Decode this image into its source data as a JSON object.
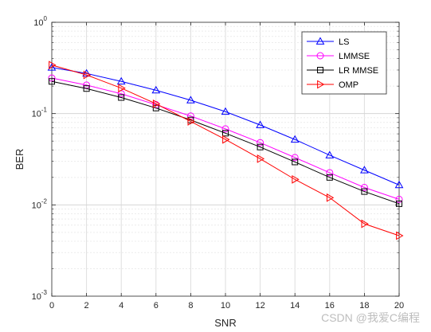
{
  "chart_data": {
    "type": "line",
    "title": "",
    "xlabel": "SNR",
    "ylabel": "BER",
    "xlim": [
      0,
      20
    ],
    "ylim": [
      0.001,
      1
    ],
    "yscale": "log",
    "grid": true,
    "minor_grid": true,
    "legend_position": "top-right",
    "x_ticks": [
      0,
      2,
      4,
      6,
      8,
      10,
      12,
      14,
      16,
      18,
      20
    ],
    "y_ticks": [
      {
        "value": 1,
        "base": "10",
        "exp": "0"
      },
      {
        "value": 0.1,
        "base": "10",
        "exp": "-1"
      },
      {
        "value": 0.01,
        "base": "10",
        "exp": "-2"
      },
      {
        "value": 0.001,
        "base": "10",
        "exp": "-3"
      }
    ],
    "x": [
      0,
      2,
      4,
      6,
      8,
      10,
      12,
      14,
      16,
      18,
      20
    ],
    "series": [
      {
        "name": "LS",
        "color": "#0000ff",
        "marker": "triangle-up",
        "values": [
          0.32,
          0.275,
          0.225,
          0.18,
          0.14,
          0.105,
          0.075,
          0.052,
          0.035,
          0.024,
          0.0165
        ]
      },
      {
        "name": "LMMSE",
        "color": "#ff00ff",
        "marker": "circle",
        "values": [
          0.245,
          0.205,
          0.165,
          0.125,
          0.094,
          0.068,
          0.048,
          0.033,
          0.0225,
          0.0155,
          0.0115
        ]
      },
      {
        "name": "LR MMSE",
        "color": "#000000",
        "marker": "square",
        "values": [
          0.225,
          0.188,
          0.15,
          0.115,
          0.085,
          0.061,
          0.043,
          0.0295,
          0.02,
          0.014,
          0.0103
        ]
      },
      {
        "name": "OMP",
        "color": "#ff0000",
        "marker": "triangle-right",
        "values": [
          0.34,
          0.265,
          0.19,
          0.128,
          0.082,
          0.052,
          0.032,
          0.019,
          0.012,
          0.0062,
          0.0046
        ]
      }
    ]
  },
  "watermark": "CSDN @我爱C编程"
}
